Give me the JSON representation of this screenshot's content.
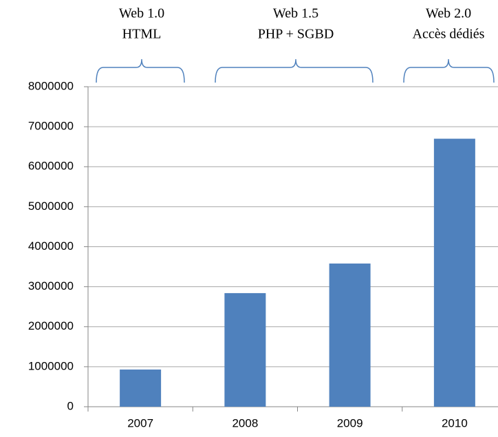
{
  "chart_data": {
    "type": "bar",
    "categories": [
      "2007",
      "2008",
      "2009",
      "2010"
    ],
    "values": [
      930000,
      2840000,
      3580000,
      6700000
    ],
    "color": "#4f81bd",
    "ylim": [
      0,
      8000000
    ],
    "yticks": [
      0,
      1000000,
      2000000,
      3000000,
      4000000,
      5000000,
      6000000,
      7000000,
      8000000
    ],
    "grid": true,
    "annotations": [
      [
        "Web 1.0",
        "HTML"
      ],
      [
        "Web 1.5",
        "PHP + SGBD"
      ],
      [
        "Web 2.0",
        "Accès dédiés"
      ]
    ]
  }
}
